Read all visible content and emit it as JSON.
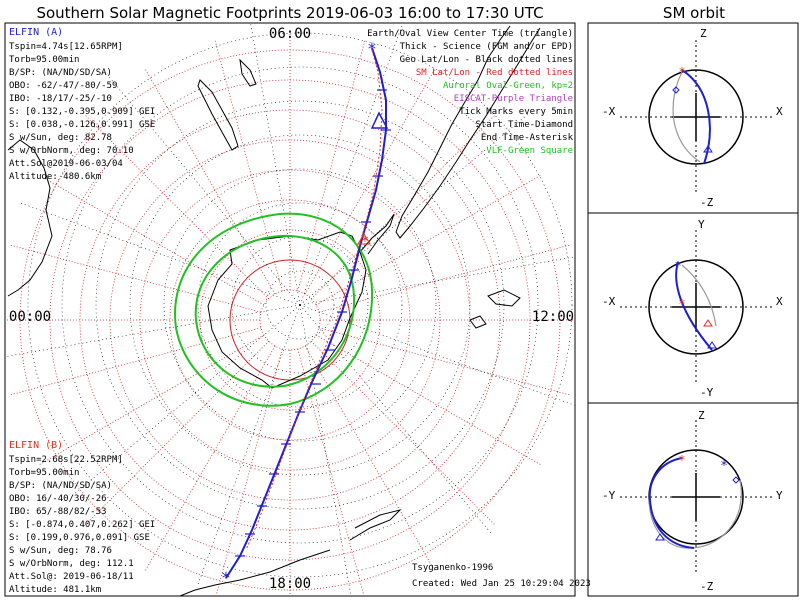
{
  "title": "Southern Solar Magnetic Footprints 2019-06-03 16:00 to 17:30 UTC",
  "colors": {
    "elfin_a": "#1f1fd0",
    "elfin_b": "#e03020",
    "auroral": "#22c022",
    "purple": "#b040c0",
    "grid": "#cc2222",
    "land": "#000000"
  },
  "legend": {
    "lines": [
      {
        "text": "Earth/Oval View Center Time (triangle)",
        "color": "#000000"
      },
      {
        "text": "Thick - Science (FGM and/or EPD)",
        "color": "#000000"
      },
      {
        "text": "Geo Lat/Lon - Black dotted lines",
        "color": "#000000"
      },
      {
        "text": "SM Lat/Lon - Red dotted lines",
        "color": "#e02020"
      },
      {
        "text": "Auroral Oval-Green, kp=2",
        "color": "#22c022"
      },
      {
        "text": "EISCAT-Purple Triangle",
        "color": "#b040c0"
      },
      {
        "text": "Tick Marks every 5min",
        "color": "#000000"
      },
      {
        "text": "Start Time-Diamond",
        "color": "#000000"
      },
      {
        "text": "End Time-Asterisk",
        "color": "#000000"
      },
      {
        "text": "VLF-Green Square",
        "color": "#22c022"
      }
    ]
  },
  "elfin_a_info": {
    "name": "ELFIN (A)",
    "lines": [
      "Tspin=4.74s[12.65RPM]",
      "Torb=95.00min",
      "B/SP: (NA/ND/SD/SA)",
      "OBO: -62/-47/-80/-59",
      "IBO: -18/17/-25/-10",
      "S: [0.132,-0.395,0.909] GEI",
      "S: [0.038,-0.126,0.991] GSE",
      "S w/Sun, deg: 82.78",
      "S w/OrbNorm, deg: 70.10",
      "Att.Sol@2019-06-03/04",
      "Altitude: 480.6km"
    ]
  },
  "elfin_b_info": {
    "name": "ELFIN (B)",
    "lines": [
      "Tspin=2.68s[22.52RPM]",
      "Torb=95.00min",
      "B/SP: (NA/ND/SD/SA)",
      "OBO: 16/-40/30/-26",
      "IBO: 65/-88/82/-53",
      "S: [-0.874,0.407,0.262] GEI",
      "S: [0.199,0.976,0.091] GSE",
      "S w/Sun, deg: 78.76",
      "S w/OrbNorm, deg: 112.1",
      "Att.Sol@: 2019-06-18/11",
      "Altitude: 481.1km"
    ]
  },
  "footer": {
    "author": "Tsyganenko-1996",
    "created": "Created: Wed Jan 25 10:29:04 2023"
  },
  "chart_data": [
    {
      "type": "polar-map",
      "title": "Southern Solar Magnetic Footprints 2019-06-03 16:00 to 17:30 UTC",
      "mlt_labels": {
        "top": "06:00",
        "left": "00:00",
        "right": "12:00",
        "bottom": "18:00"
      },
      "projection": "southern hemisphere, SM coordinates",
      "series": [
        {
          "name": "ELFIN (A)",
          "color": "#1f1fd0"
        },
        {
          "name": "ELFIN (B)",
          "color": "#e03020"
        }
      ]
    },
    {
      "type": "scatter",
      "title": "SM orbit",
      "panels": [
        {
          "top": "Z",
          "bottom": "-Z",
          "left": "-X",
          "right": "X"
        },
        {
          "top": "Y",
          "bottom": "-Y",
          "left": "-X",
          "right": "X"
        },
        {
          "top": "Z",
          "bottom": "-Z",
          "left": "-Y",
          "right": "Y"
        }
      ]
    }
  ]
}
